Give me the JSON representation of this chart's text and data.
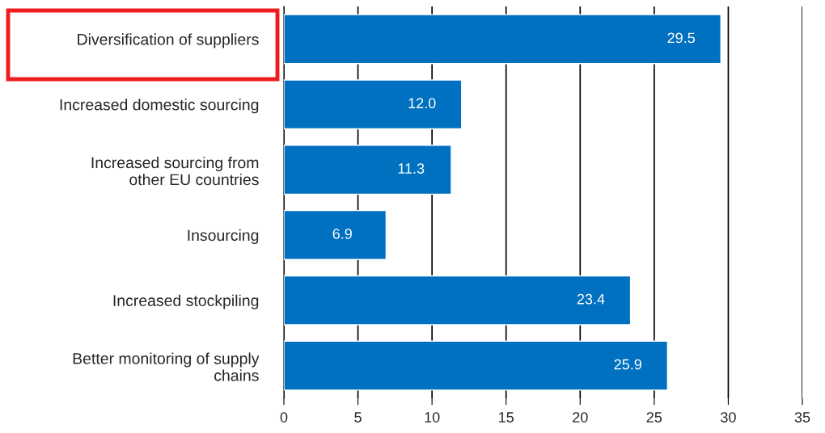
{
  "chart_data": {
    "type": "bar",
    "orientation": "horizontal",
    "categories": [
      "Diversification of suppliers",
      "Increased domestic sourcing",
      "Increased sourcing from\nother EU countries",
      "Insourcing",
      "Increased stockpiling",
      "Better monitoring of supply\nchains"
    ],
    "values": [
      29.5,
      12.0,
      11.3,
      6.9,
      23.4,
      25.9
    ],
    "value_labels": [
      "29.5",
      "12.0",
      "11.3",
      "6.9",
      "23.4",
      "25.9"
    ],
    "color": "#0070c0",
    "xlim": [
      0,
      35
    ],
    "xticks": [
      0,
      5,
      10,
      15,
      20,
      25,
      30,
      35
    ],
    "grid": "x"
  }
}
